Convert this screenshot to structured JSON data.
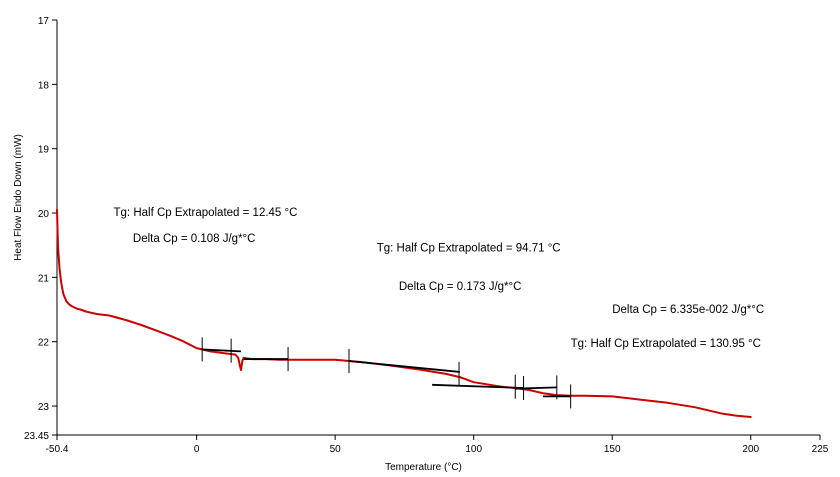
{
  "chart_data": {
    "type": "line",
    "title": "",
    "xlabel": "Temperature (°C)",
    "ylabel": "Heat Flow Endo Down (mW)",
    "xlim": [
      -50.4,
      225
    ],
    "ylim": [
      17,
      23.45
    ],
    "y_inverted": true,
    "x_ticks": [
      -50.4,
      0,
      50,
      100,
      150,
      200,
      225
    ],
    "x_tick_labels": [
      "-50.4",
      "0",
      "50",
      "100",
      "150",
      "200",
      "225"
    ],
    "y_ticks": [
      17,
      18,
      19,
      20,
      21,
      22,
      23,
      23.45
    ],
    "y_tick_labels": [
      "17",
      "18",
      "19",
      "20",
      "21",
      "22",
      "23",
      "23.45"
    ],
    "grid": false,
    "legend": "none",
    "series": [
      {
        "color": "#cc0000",
        "x": [
          -50.4,
          -50.2,
          -50,
          -49.5,
          -49,
          -48.5,
          -48,
          -47,
          -46,
          -45,
          -44,
          -43,
          -42,
          -40,
          -38,
          -36,
          -34,
          -32,
          -30,
          -25,
          -20,
          -15,
          -10,
          -5,
          0,
          5,
          10,
          14,
          15,
          15.5,
          16,
          16.5,
          17,
          18,
          20,
          25,
          30,
          40,
          50,
          55,
          60,
          70,
          80,
          90,
          95,
          100,
          110,
          115,
          120,
          125,
          130,
          135,
          140,
          150,
          160,
          170,
          180,
          190,
          195,
          200
        ],
        "y": [
          19.95,
          20.3,
          20.55,
          20.85,
          21.05,
          21.18,
          21.27,
          21.37,
          21.42,
          21.45,
          21.47,
          21.49,
          21.5,
          21.53,
          21.55,
          21.57,
          21.58,
          21.59,
          21.61,
          21.67,
          21.74,
          21.82,
          21.9,
          21.99,
          22.1,
          22.15,
          22.18,
          22.2,
          22.25,
          22.35,
          22.44,
          22.3,
          22.25,
          22.26,
          22.27,
          22.27,
          22.28,
          22.28,
          22.28,
          22.3,
          22.32,
          22.37,
          22.43,
          22.5,
          22.55,
          22.63,
          22.7,
          22.72,
          22.75,
          22.8,
          22.83,
          22.84,
          22.84,
          22.85,
          22.9,
          22.95,
          23.02,
          23.12,
          23.15,
          23.17
        ]
      }
    ],
    "baselines": [
      {
        "x": [
          2,
          16
        ],
        "y": [
          22.12,
          22.15
        ]
      },
      {
        "x": [
          17,
          33
        ],
        "y": [
          22.27,
          22.27
        ]
      },
      {
        "x": [
          55,
          95
        ],
        "y": [
          22.3,
          22.47
        ]
      },
      {
        "x": [
          85,
          118
        ],
        "y": [
          22.67,
          22.72
        ]
      },
      {
        "x": [
          115,
          130
        ],
        "y": [
          22.73,
          22.71
        ]
      },
      {
        "x": [
          125,
          135
        ],
        "y": [
          22.85,
          22.85
        ]
      }
    ],
    "markers": [
      {
        "x": 2,
        "y": 22.12
      },
      {
        "x": 12.45,
        "y": 22.14
      },
      {
        "x": 33,
        "y": 22.27
      },
      {
        "x": 55,
        "y": 22.3
      },
      {
        "x": 94.71,
        "y": 22.5
      },
      {
        "x": 115,
        "y": 22.7
      },
      {
        "x": 118,
        "y": 22.72
      },
      {
        "x": 130,
        "y": 22.71
      },
      {
        "x": 135,
        "y": 22.85
      }
    ],
    "annotations": [
      {
        "text": "Tg: Half Cp Extrapolated = 12.45 °C",
        "x": -30,
        "y": 20.05
      },
      {
        "text": "Delta Cp = 0.108 J/g*°C",
        "x": -23,
        "y": 20.45
      },
      {
        "text": "Tg: Half Cp Extrapolated = 94.71 °C",
        "x": 65,
        "y": 20.6
      },
      {
        "text": "Delta Cp = 0.173 J/g*°C",
        "x": 73,
        "y": 21.2
      },
      {
        "text": "Delta Cp = 6.335e-002 J/g*°C",
        "x": 150,
        "y": 21.55
      },
      {
        "text": "Tg: Half Cp Extrapolated = 130.95 °C",
        "x": 135,
        "y": 22.08
      }
    ]
  }
}
